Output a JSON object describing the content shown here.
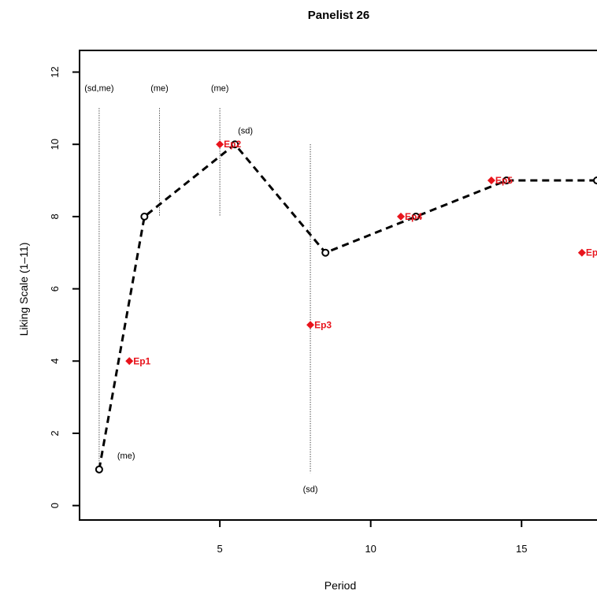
{
  "chart_data": {
    "type": "line",
    "title": "Panelist 26",
    "xlabel": "Period",
    "ylabel": "Liking Scale (1–11)",
    "xlim": [
      0.35,
      17.5
    ],
    "ylim": [
      -0.4,
      12.6
    ],
    "xticks": [
      5,
      10,
      15
    ],
    "yticks": [
      0,
      2,
      4,
      6,
      8,
      10,
      12
    ],
    "grid": false,
    "series": [
      {
        "style": "dashed",
        "marker": "open-circle",
        "color": "#000000",
        "points": [
          {
            "x": 1,
            "y": 1
          },
          {
            "x": 2.5,
            "y": 8
          },
          {
            "x": 5.5,
            "y": 10
          },
          {
            "x": 8.5,
            "y": 7
          },
          {
            "x": 11.5,
            "y": 8
          },
          {
            "x": 14.5,
            "y": 9
          },
          {
            "x": 17.5,
            "y": 9
          }
        ]
      }
    ],
    "episodes": {
      "color": "#e8141c",
      "points": [
        {
          "label": "Ep1",
          "x": 2,
          "y": 4
        },
        {
          "label": "Ep2",
          "x": 5,
          "y": 10
        },
        {
          "label": "Ep3",
          "x": 8,
          "y": 5
        },
        {
          "label": "Ep4",
          "x": 11,
          "y": 8
        },
        {
          "label": "Ep5",
          "x": 14,
          "y": 9
        },
        {
          "label": "Ep",
          "x": 17,
          "y": 7
        }
      ]
    },
    "vlines": [
      {
        "x": 1,
        "y_low": 1,
        "y_high": 11,
        "label": "(sd,me)"
      },
      {
        "x": 3,
        "y_low": 8,
        "y_high": 11,
        "label": "(me)"
      },
      {
        "x": 5,
        "y_low": 8,
        "y_high": 11,
        "label": "(me)"
      },
      {
        "x": 8,
        "y_low": 0.9,
        "y_high": 10,
        "label": "(sd)"
      }
    ],
    "annotations": [
      {
        "text": "(me)",
        "x": 1.6,
        "y": 1.3
      },
      {
        "text": "(sd)",
        "x": 5.6,
        "y": 10.3
      }
    ]
  }
}
